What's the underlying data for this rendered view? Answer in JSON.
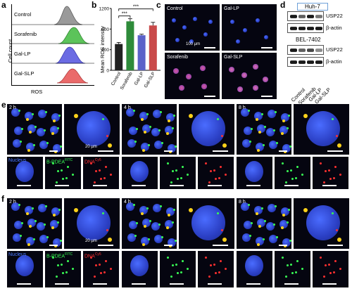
{
  "panel_labels": {
    "a": "a",
    "b": "b",
    "c": "c",
    "d": "d",
    "e": "e",
    "f": "f"
  },
  "panel_a": {
    "samples": [
      "Control",
      "Sorafenib",
      "Gal-LP",
      "Gal-SLP"
    ],
    "colors": [
      "#888888",
      "#3cb043",
      "#5a5ad8",
      "#e05050"
    ],
    "ylabel": "Cell count",
    "xlabel": "ROS"
  },
  "chart_data": {
    "type": "bar",
    "categories": [
      "Control",
      "Sorafenib",
      "Gal-LP",
      "Gal-SLP"
    ],
    "values": [
      510,
      950,
      680,
      870
    ],
    "errors": [
      30,
      50,
      20,
      60
    ],
    "colors": [
      "#222222",
      "#2e8b3a",
      "#5b62c9",
      "#c94a4a"
    ],
    "ylabel": "Mean ROS intensity",
    "ylim": [
      0,
      1200
    ],
    "yticks": [
      0,
      400,
      800,
      1200
    ],
    "significance": [
      "***",
      "***"
    ]
  },
  "panel_c": {
    "labels": [
      "Control",
      "Gal-LP",
      "Sorafenib",
      "Gal-SLP"
    ],
    "scale": "100 µm"
  },
  "panel_d": {
    "cell_lines": [
      "Huh-7",
      "BEL-7402"
    ],
    "proteins": [
      "USP22",
      "β-actin"
    ],
    "lanes": [
      "Control",
      "Sorafenib",
      "Gal-LP",
      "Gal-SLP"
    ]
  },
  "panel_e": {
    "times": [
      "2 h",
      "4 h",
      "8 h"
    ],
    "scale": "20 µm",
    "channels": {
      "nucleus": "Nucleus",
      "pdea": "B-PDEA",
      "pdea_sup": "FITC",
      "dna": "DNA",
      "dna_sup": "Cy5"
    }
  },
  "panel_f": {
    "times": [
      "2 h",
      "4 h",
      "8 h"
    ],
    "scale": "20 µm",
    "channels": {
      "nucleus": "Nucleus",
      "pdea": "B-PDEA",
      "pdea_sup": "FITC",
      "dna": "DNA",
      "dna_sup": "Cy5"
    }
  }
}
